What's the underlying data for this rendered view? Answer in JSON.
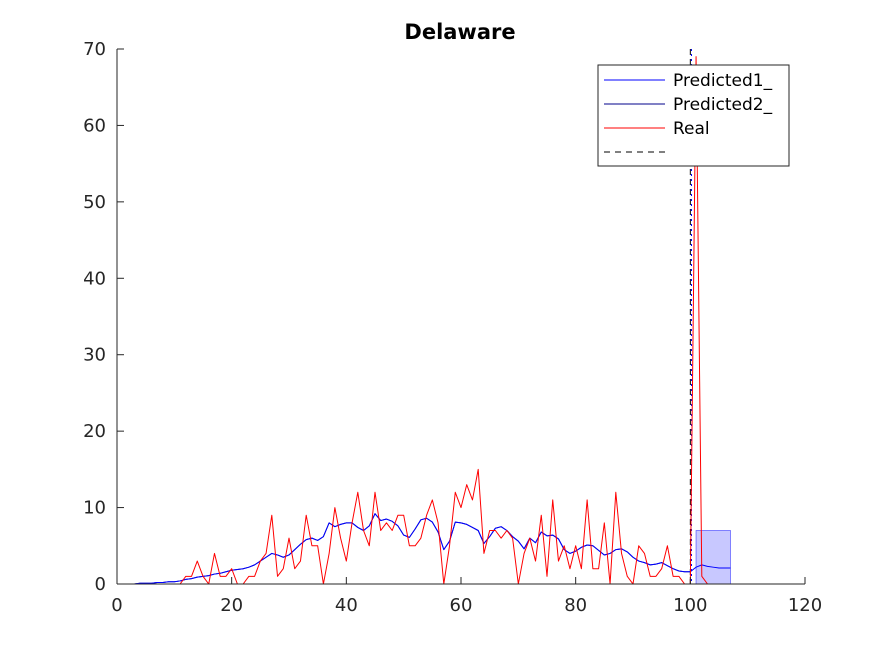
{
  "chart_data": {
    "type": "line",
    "title": "Delaware",
    "xlabel": "",
    "ylabel": "",
    "xlim": [
      0,
      120
    ],
    "ylim": [
      0,
      70
    ],
    "xticks": [
      0,
      20,
      40,
      60,
      80,
      100,
      120
    ],
    "yticks": [
      0,
      10,
      20,
      30,
      40,
      50,
      60,
      70
    ],
    "grid": false,
    "legend_position": "top-right",
    "colors": {
      "predicted1": "#0000ff",
      "predicted2": "#00008b",
      "real": "#ff0000",
      "vline_dashed": "#000000",
      "vline_dotted": "#0000ff",
      "band_fill": "#c8c8ff",
      "band_stroke": "#6666ff"
    },
    "legend": [
      {
        "label": "Predicted1_",
        "style": "solid",
        "color_key": "predicted1"
      },
      {
        "label": "Predicted2_",
        "style": "solid",
        "color_key": "predicted2"
      },
      {
        "label": "Real",
        "style": "solid",
        "color_key": "real"
      },
      {
        "label": "",
        "style": "dashed",
        "color_key": "vline_dashed"
      }
    ],
    "vertical_lines": [
      {
        "x": 100,
        "style": "dashed",
        "color_key": "vline_dashed"
      },
      {
        "x": 100.2,
        "style": "dotted",
        "color_key": "vline_dotted"
      }
    ],
    "band": {
      "x0": 101,
      "x1": 107,
      "y0": 0,
      "y1": 7
    },
    "series": [
      {
        "name": "Real",
        "color_key": "real",
        "x": [
          1,
          2,
          3,
          4,
          5,
          6,
          7,
          8,
          9,
          10,
          11,
          12,
          13,
          14,
          15,
          16,
          17,
          18,
          19,
          20,
          21,
          22,
          23,
          24,
          25,
          26,
          27,
          28,
          29,
          30,
          31,
          32,
          33,
          34,
          35,
          36,
          37,
          38,
          39,
          40,
          41,
          42,
          43,
          44,
          45,
          46,
          47,
          48,
          49,
          50,
          51,
          52,
          53,
          54,
          55,
          56,
          57,
          58,
          59,
          60,
          61,
          62,
          63,
          64,
          65,
          66,
          67,
          68,
          69,
          70,
          71,
          72,
          73,
          74,
          75,
          76,
          77,
          78,
          79,
          80,
          81,
          82,
          83,
          84,
          85,
          86,
          87,
          88,
          89,
          90,
          91,
          92,
          93,
          94,
          95,
          96,
          97,
          98,
          99,
          100,
          101,
          102,
          103,
          104,
          105,
          106,
          107
        ],
        "y": [
          0,
          0,
          0,
          0,
          0,
          0,
          0,
          0,
          0,
          0,
          0,
          1,
          1,
          3,
          1,
          0,
          4,
          1,
          1,
          2,
          0,
          0,
          1,
          1,
          3,
          4,
          9,
          1,
          2,
          6,
          2,
          3,
          9,
          5,
          5,
          0,
          4,
          10,
          6,
          3,
          8,
          12,
          7,
          5,
          12,
          7,
          8,
          7,
          9,
          9,
          5,
          5,
          6,
          9,
          11,
          8,
          0,
          5,
          12,
          10,
          13,
          11,
          15,
          4,
          7,
          7,
          6,
          7,
          6,
          0,
          4,
          6,
          3,
          9,
          1,
          11,
          3,
          5,
          2,
          5,
          2,
          11,
          2,
          2,
          8,
          0,
          12,
          4,
          1,
          0,
          5,
          4,
          1,
          1,
          2,
          5,
          1,
          1,
          0,
          0,
          69,
          1,
          0,
          0,
          0,
          0,
          0
        ],
        "style": "solid"
      },
      {
        "name": "Predicted1_",
        "color_key": "predicted1",
        "x": [
          1,
          2,
          3,
          4,
          5,
          6,
          7,
          8,
          9,
          10,
          11,
          12,
          13,
          14,
          15,
          16,
          17,
          18,
          19,
          20,
          21,
          22,
          23,
          24,
          25,
          26,
          27,
          28,
          29,
          30,
          31,
          32,
          33,
          34,
          35,
          36,
          37,
          38,
          39,
          40,
          41,
          42,
          43,
          44,
          45,
          46,
          47,
          48,
          49,
          50,
          51,
          52,
          53,
          54,
          55,
          56,
          57,
          58,
          59,
          60,
          61,
          62,
          63,
          64,
          65,
          66,
          67,
          68,
          69,
          70,
          71,
          72,
          73,
          74,
          75,
          76,
          77,
          78,
          79,
          80,
          81,
          82,
          83,
          84,
          85,
          86,
          87,
          88,
          89,
          90,
          91,
          92,
          93,
          94,
          95,
          96,
          97,
          98,
          99,
          100,
          101,
          102,
          103,
          104,
          105,
          106,
          107
        ],
        "y": [
          0,
          0,
          0,
          0.1,
          0.1,
          0.1,
          0.2,
          0.2,
          0.3,
          0.3,
          0.4,
          0.6,
          0.7,
          0.9,
          1.0,
          1.1,
          1.3,
          1.4,
          1.6,
          1.8,
          1.9,
          2.0,
          2.2,
          2.5,
          3.0,
          3.5,
          4.0,
          3.8,
          3.5,
          3.8,
          4.5,
          5.2,
          5.8,
          6.0,
          5.7,
          6.2,
          8.0,
          7.5,
          7.8,
          8.0,
          8.0,
          7.4,
          7.0,
          7.6,
          9.2,
          8.3,
          8.5,
          8.2,
          7.6,
          6.4,
          6.1,
          7.2,
          8.4,
          8.6,
          8.1,
          6.8,
          4.5,
          5.6,
          8.1,
          8.0,
          7.8,
          7.4,
          7.0,
          5.3,
          6.2,
          7.3,
          7.5,
          7.0,
          6.2,
          5.6,
          4.6,
          6.0,
          5.4,
          6.8,
          6.3,
          6.4,
          5.9,
          4.5,
          4.0,
          4.3,
          4.8,
          5.1,
          5.0,
          4.4,
          3.8,
          4.0,
          4.5,
          4.6,
          4.2,
          3.5,
          3.0,
          2.8,
          2.5,
          2.6,
          2.8,
          2.4,
          2.0,
          1.7,
          1.6,
          1.6,
          2.2,
          2.5,
          2.3,
          2.2,
          2.1,
          2.1,
          2.1
        ],
        "style": "solid"
      },
      {
        "name": "Predicted2_",
        "color_key": "predicted2",
        "x": [
          1,
          2,
          3,
          4,
          5,
          6,
          7,
          8,
          9,
          10,
          11,
          12,
          13,
          14,
          15,
          16,
          17,
          18,
          19,
          20,
          21,
          22,
          23,
          24,
          25,
          26,
          27,
          28,
          29,
          30,
          31,
          32,
          33,
          34,
          35,
          36,
          37,
          38,
          39,
          40,
          41,
          42,
          43,
          44,
          45,
          46,
          47,
          48,
          49,
          50,
          51,
          52,
          53,
          54,
          55,
          56,
          57,
          58,
          59,
          60,
          61,
          62,
          63,
          64,
          65,
          66,
          67,
          68,
          69,
          70,
          71,
          72,
          73,
          74,
          75,
          76,
          77,
          78,
          79,
          80,
          81,
          82,
          83,
          84,
          85,
          86,
          87,
          88,
          89,
          90,
          91,
          92,
          93,
          94,
          95,
          96,
          97,
          98,
          99,
          100
        ],
        "y": [
          0,
          0,
          0,
          0.1,
          0.1,
          0.1,
          0.2,
          0.2,
          0.3,
          0.3,
          0.4,
          0.6,
          0.7,
          0.9,
          1.0,
          1.1,
          1.3,
          1.4,
          1.6,
          1.8,
          1.9,
          2.0,
          2.2,
          2.5,
          3.0,
          3.5,
          4.0,
          3.8,
          3.5,
          3.8,
          4.5,
          5.2,
          5.8,
          6.0,
          5.7,
          6.2,
          8.0,
          7.5,
          7.8,
          8.0,
          8.0,
          7.4,
          7.0,
          7.6,
          9.2,
          8.3,
          8.5,
          8.2,
          7.6,
          6.4,
          6.1,
          7.2,
          8.4,
          8.6,
          8.1,
          6.8,
          4.5,
          5.6,
          8.1,
          8.0,
          7.8,
          7.4,
          7.0,
          5.3,
          6.2,
          7.3,
          7.5,
          7.0,
          6.2,
          5.6,
          4.6,
          6.0,
          5.4,
          6.8,
          6.3,
          6.4,
          5.9,
          4.5,
          4.0,
          4.3,
          4.8,
          5.1,
          5.0,
          4.4,
          3.8,
          4.0,
          4.5,
          4.6,
          4.2,
          3.5,
          3.0,
          2.8,
          2.5,
          2.6,
          2.8,
          2.4,
          2.0,
          1.7,
          1.6,
          1.6
        ],
        "style": "solid"
      }
    ]
  }
}
